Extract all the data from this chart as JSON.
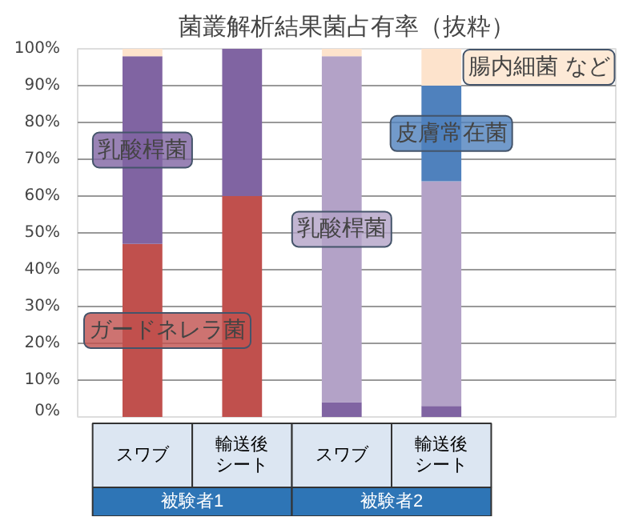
{
  "chart_data": {
    "type": "bar",
    "stacked": true,
    "title": "菌叢解析結果菌占有率（抜粋）",
    "categories": [
      "スワブ",
      "輸送後シート",
      "スワブ",
      "輸送後シート"
    ],
    "series": [
      {
        "name": "ガードネレラ菌",
        "color": "#c0504d",
        "values": [
          47,
          60,
          0,
          0
        ]
      },
      {
        "name": "乳酸桿菌",
        "color": "#8064a2",
        "values": [
          51,
          40,
          4,
          3
        ]
      },
      {
        "name": "乳酸桿菌",
        "color": "#b3a2c7",
        "values": [
          0,
          0,
          94,
          61
        ]
      },
      {
        "name": "皮膚常在菌",
        "color": "#4f81bd",
        "values": [
          0,
          0,
          0,
          26
        ]
      },
      {
        "name": "腸内細菌 など",
        "color": "#fde3cc",
        "values": [
          2,
          0,
          2,
          10
        ]
      }
    ],
    "annotations": [
      "被験者1",
      "被験者2"
    ],
    "ylim": [
      0,
      100
    ],
    "yticks": [
      {
        "value": 0,
        "label": "0%"
      },
      {
        "value": 10,
        "label": "10%"
      },
      {
        "value": 20,
        "label": "20%"
      },
      {
        "value": 30,
        "label": "30%"
      },
      {
        "value": 40,
        "label": "40%"
      },
      {
        "value": 50,
        "label": "50%"
      },
      {
        "value": 60,
        "label": "60%"
      },
      {
        "value": 70,
        "label": "70%"
      },
      {
        "value": 80,
        "label": "80%"
      },
      {
        "value": 90,
        "label": "90%"
      },
      {
        "value": 100,
        "label": "100%"
      }
    ],
    "grid": "y"
  }
}
